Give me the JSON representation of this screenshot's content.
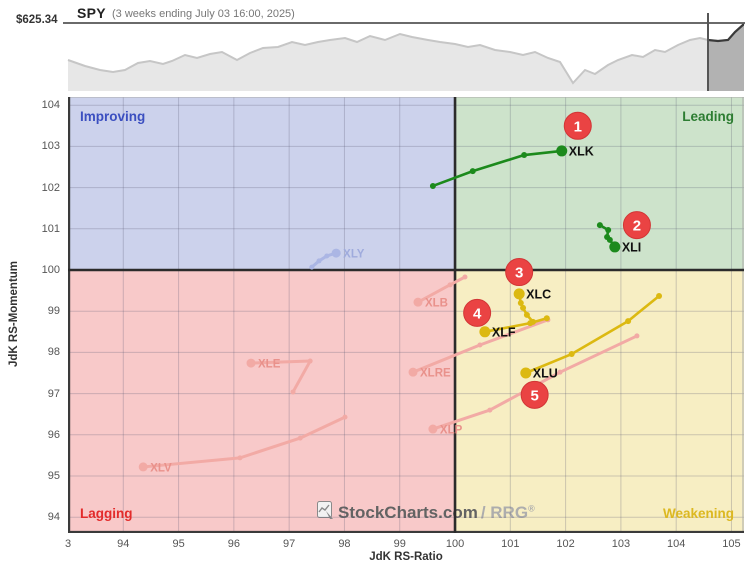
{
  "header": {
    "price": "$625.34",
    "symbol": "SPY",
    "subtitle": "(3 weeks ending July 03 16:00, 2025)"
  },
  "watermark": {
    "brand": "StockCharts.com",
    "suffix": "/ RRG",
    "reg": "®"
  },
  "axes": {
    "x_title": "JdK RS-Ratio",
    "y_title": "JdK RS-Momentum",
    "x_ticks": [
      {
        "value": 93,
        "label": "3"
      },
      {
        "value": 94,
        "label": "94"
      },
      {
        "value": 95,
        "label": "95"
      },
      {
        "value": 96,
        "label": "96"
      },
      {
        "value": 97,
        "label": "97"
      },
      {
        "value": 98,
        "label": "98"
      },
      {
        "value": 99,
        "label": "99"
      },
      {
        "value": 100,
        "label": "100"
      },
      {
        "value": 101,
        "label": "101"
      },
      {
        "value": 102,
        "label": "102"
      },
      {
        "value": 103,
        "label": "103"
      },
      {
        "value": 104,
        "label": "104"
      },
      {
        "value": 105,
        "label": "105"
      }
    ],
    "y_ticks": [
      104,
      103,
      102,
      101,
      100,
      99,
      98,
      97,
      96,
      95,
      94
    ]
  },
  "quadrants": {
    "improving": {
      "label": "Improving",
      "bg": "#ccd2ec",
      "text": "#3b4fc0"
    },
    "leading": {
      "label": "Leading",
      "bg": "#cde3cb",
      "text": "#2d7d32"
    },
    "lagging": {
      "label": "Lagging",
      "bg": "#f8c9c9",
      "text": "#e32b2b"
    },
    "weakening": {
      "label": "Weakening",
      "bg": "#f7eec3",
      "text": "#dcb821"
    }
  },
  "chart_data": {
    "type": "scatter",
    "x_label": "JdK RS-Ratio",
    "y_label": "JdK RS-Momentum",
    "x_range": [
      93,
      105.2
    ],
    "y_range": [
      93.6,
      104.2
    ],
    "center_cross": [
      100,
      100
    ],
    "grid": true,
    "series": [
      {
        "symbol": "XLK",
        "state": "active",
        "color": "#1c8a1c",
        "label_color": "#111111",
        "points": [
          [
            99.6,
            102.04
          ],
          [
            100.32,
            102.4
          ],
          [
            101.25,
            102.79
          ],
          [
            101.93,
            102.89
          ]
        ]
      },
      {
        "symbol": "XLI",
        "state": "active",
        "color": "#1c8a1c",
        "label_color": "#111111",
        "points": [
          [
            102.62,
            101.09
          ],
          [
            102.77,
            100.97
          ],
          [
            102.75,
            100.8
          ],
          [
            102.8,
            100.73
          ],
          [
            102.89,
            100.56
          ]
        ]
      },
      {
        "symbol": "XLC",
        "state": "active",
        "color": "#dcb911",
        "label_color": "#111111",
        "points": [
          [
            101.41,
            98.74
          ],
          [
            101.3,
            98.91
          ],
          [
            101.23,
            99.08
          ],
          [
            101.19,
            99.2
          ],
          [
            101.16,
            99.42
          ]
        ]
      },
      {
        "symbol": "XLF",
        "state": "active",
        "color": "#dcb911",
        "label_color": "#111111",
        "points": [
          [
            101.66,
            98.83
          ],
          [
            101.36,
            98.71
          ],
          [
            100.54,
            98.5
          ]
        ]
      },
      {
        "symbol": "XLU",
        "state": "active",
        "color": "#dcb911",
        "label_color": "#111111",
        "points": [
          [
            103.69,
            99.37
          ],
          [
            103.13,
            98.76
          ],
          [
            102.11,
            97.96
          ],
          [
            101.28,
            97.5
          ]
        ]
      },
      {
        "symbol": "XLY",
        "state": "faded",
        "color": "#abb6e4",
        "label_color": "#9fabdd",
        "points": [
          [
            97.41,
            100.07
          ],
          [
            97.54,
            100.22
          ],
          [
            97.68,
            100.34
          ],
          [
            97.85,
            100.41
          ]
        ]
      },
      {
        "symbol": "XLB",
        "state": "faded",
        "color": "#f2aaa5",
        "label_color": "#e9918b",
        "points": [
          [
            100.18,
            99.83
          ],
          [
            99.91,
            99.64
          ],
          [
            99.33,
            99.22
          ]
        ]
      },
      {
        "symbol": "XLE",
        "state": "faded",
        "color": "#f2aaa5",
        "label_color": "#e9918b",
        "points": [
          [
            97.07,
            97.04
          ],
          [
            97.38,
            97.79
          ],
          [
            96.31,
            97.74
          ]
        ]
      },
      {
        "symbol": "XLRE",
        "state": "faded",
        "color": "#f2aaa5",
        "label_color": "#e9918b",
        "points": [
          [
            101.68,
            98.79
          ],
          [
            100.45,
            98.18
          ],
          [
            99.24,
            97.52
          ]
        ]
      },
      {
        "symbol": "XLP",
        "state": "faded",
        "color": "#f2aaa5",
        "label_color": "#e9918b",
        "points": [
          [
            103.29,
            98.4
          ],
          [
            101.9,
            97.52
          ],
          [
            100.63,
            96.6
          ],
          [
            99.6,
            96.14
          ]
        ]
      },
      {
        "symbol": "XLV",
        "state": "faded",
        "color": "#f2aaa5",
        "label_color": "#e9918b",
        "points": [
          [
            98.01,
            96.43
          ],
          [
            97.2,
            95.92
          ],
          [
            96.11,
            95.44
          ],
          [
            94.36,
            95.22
          ]
        ]
      }
    ],
    "badges": [
      {
        "n": "1",
        "x": 102.22,
        "y": 103.5
      },
      {
        "n": "2",
        "x": 103.29,
        "y": 101.09
      },
      {
        "n": "3",
        "x": 101.16,
        "y": 99.95
      },
      {
        "n": "4",
        "x": 100.4,
        "y": 98.96
      },
      {
        "n": "5",
        "x": 101.44,
        "y": 96.97
      }
    ],
    "badge_color": "#ea4343",
    "spy_sparkline": {
      "highlight_start": 645,
      "points": [
        [
          5,
          37
        ],
        [
          22,
          43
        ],
        [
          37,
          47
        ],
        [
          50,
          49
        ],
        [
          62,
          47
        ],
        [
          75,
          40
        ],
        [
          87,
          38
        ],
        [
          100,
          41
        ],
        [
          109,
          38
        ],
        [
          122,
          32
        ],
        [
          134,
          35
        ],
        [
          147,
          31
        ],
        [
          159,
          29
        ],
        [
          174,
          37
        ],
        [
          187,
          30
        ],
        [
          200,
          25
        ],
        [
          215,
          24
        ],
        [
          229,
          19
        ],
        [
          242,
          22
        ],
        [
          255,
          19
        ],
        [
          267,
          17
        ],
        [
          282,
          15
        ],
        [
          294,
          19
        ],
        [
          307,
          13
        ],
        [
          322,
          17
        ],
        [
          337,
          11
        ],
        [
          349,
          14
        ],
        [
          365,
          17
        ],
        [
          377,
          19
        ],
        [
          392,
          21
        ],
        [
          405,
          24
        ],
        [
          417,
          22
        ],
        [
          432,
          27
        ],
        [
          447,
          29
        ],
        [
          460,
          32
        ],
        [
          472,
          29
        ],
        [
          485,
          35
        ],
        [
          497,
          39
        ],
        [
          510,
          60
        ],
        [
          522,
          47
        ],
        [
          532,
          51
        ],
        [
          545,
          42
        ],
        [
          555,
          37
        ],
        [
          569,
          32
        ],
        [
          580,
          34
        ],
        [
          592,
          27
        ],
        [
          602,
          29
        ],
        [
          615,
          22
        ],
        [
          627,
          17
        ],
        [
          637,
          15
        ],
        [
          645,
          17
        ],
        [
          655,
          18
        ],
        [
          665,
          17
        ],
        [
          672,
          9
        ],
        [
          681,
          1
        ]
      ]
    }
  }
}
